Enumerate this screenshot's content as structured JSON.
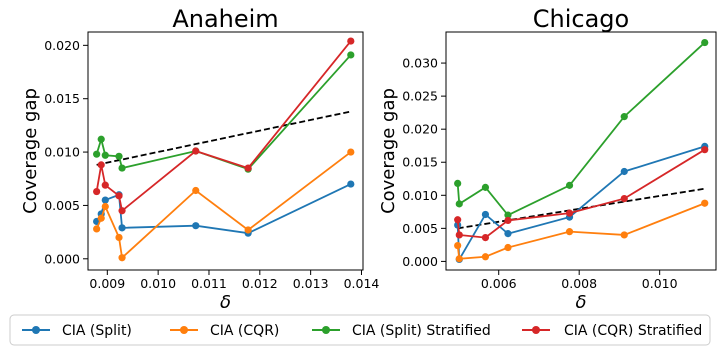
{
  "chart_data": [
    {
      "type": "line",
      "title": "Anaheim",
      "xlabel": "δ",
      "ylabel": "Coverage gap",
      "xlim": [
        0.00862,
        0.01403
      ],
      "ylim": [
        -0.00105,
        0.02125
      ],
      "xticks": [
        0.009,
        0.01,
        0.011,
        0.012,
        0.013,
        0.014
      ],
      "xtick_labels": [
        "0.009",
        "0.010",
        "0.011",
        "0.012",
        "0.013",
        "0.014"
      ],
      "yticks": [
        0.0,
        0.005,
        0.01,
        0.015,
        0.02
      ],
      "ytick_labels": [
        "0.000",
        "0.005",
        "0.010",
        "0.015",
        "0.020"
      ],
      "grid": false,
      "x": [
        0.00879,
        0.00888,
        0.00896,
        0.00923,
        0.00929,
        0.01074,
        0.01177,
        0.01379
      ],
      "series": [
        {
          "name": "CIA (Split)",
          "color": "#1f77b4",
          "values": [
            0.0035,
            0.0042,
            0.0055,
            0.006,
            0.0029,
            0.0031,
            0.0024,
            0.007
          ]
        },
        {
          "name": "CIA (CQR)",
          "color": "#ff7f0e",
          "values": [
            0.0028,
            0.0038,
            0.0049,
            0.002,
            0.0001,
            0.0064,
            0.0027,
            0.01
          ]
        },
        {
          "name": "CIA (Split) Stratified",
          "color": "#2ca02c",
          "values": [
            0.0098,
            0.0112,
            0.0097,
            0.0096,
            0.0085,
            0.0101,
            0.0084,
            0.0191
          ]
        },
        {
          "name": "CIA (CQR) Stratified",
          "color": "#d62728",
          "values": [
            0.0063,
            0.0088,
            0.0069,
            0.0059,
            0.0045,
            0.0101,
            0.0085,
            0.0204
          ]
        }
      ],
      "trend": {
        "style": "dashed",
        "color": "#000000",
        "x": [
          0.00879,
          0.01379
        ],
        "y": [
          0.0088,
          0.0138
        ]
      }
    },
    {
      "type": "line",
      "title": "Chicago",
      "xlabel": "δ",
      "ylabel": "Coverage gap",
      "xlim": [
        0.00469,
        0.0114
      ],
      "ylim": [
        -0.0013,
        0.0347
      ],
      "xticks": [
        0.006,
        0.008,
        0.01
      ],
      "xtick_labels": [
        "0.006",
        "0.008",
        "0.010"
      ],
      "yticks": [
        0.0,
        0.005,
        0.01,
        0.015,
        0.02,
        0.025,
        0.03
      ],
      "ytick_labels": [
        "0.000",
        "0.005",
        "0.010",
        "0.015",
        "0.020",
        "0.025",
        "0.030"
      ],
      "grid": false,
      "x": [
        0.00498,
        0.00502,
        0.00567,
        0.00623,
        0.00776,
        0.00912,
        0.01112
      ],
      "series": [
        {
          "name": "CIA (Split)",
          "color": "#1f77b4",
          "values": [
            0.0055,
            0.0003,
            0.0071,
            0.0042,
            0.0067,
            0.0136,
            0.0174
          ]
        },
        {
          "name": "CIA (CQR)",
          "color": "#ff7f0e",
          "values": [
            0.0024,
            0.0004,
            0.0007,
            0.0021,
            0.0045,
            0.004,
            0.0088
          ]
        },
        {
          "name": "CIA (Split) Stratified",
          "color": "#2ca02c",
          "values": [
            0.0118,
            0.0087,
            0.0112,
            0.007,
            0.0115,
            0.0219,
            0.0331
          ]
        },
        {
          "name": "CIA (CQR) Stratified",
          "color": "#d62728",
          "values": [
            0.0063,
            0.004,
            0.0036,
            0.0062,
            0.0073,
            0.0095,
            0.0169
          ]
        }
      ],
      "trend": {
        "style": "dashed",
        "color": "#000000",
        "x": [
          0.00498,
          0.01112
        ],
        "y": [
          0.005,
          0.011
        ]
      }
    }
  ],
  "legend": {
    "placement": "bottom",
    "items": [
      {
        "label": "CIA (Split)",
        "color": "#1f77b4"
      },
      {
        "label": "CIA (CQR)",
        "color": "#ff7f0e"
      },
      {
        "label": "CIA (Split) Stratified",
        "color": "#2ca02c"
      },
      {
        "label": "CIA (CQR) Stratified",
        "color": "#d62728"
      }
    ]
  }
}
